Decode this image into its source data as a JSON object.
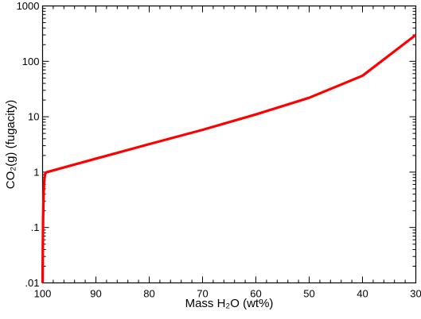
{
  "chart_data": {
    "type": "line",
    "xlabel": "Mass H₂O (wt%)",
    "ylabel": "CO₂(g) (fugacity)",
    "x_scale": "linear",
    "x_reversed": true,
    "xlim": [
      100,
      30
    ],
    "y_scale": "log",
    "ylim": [
      0.01,
      1000
    ],
    "x_ticks": [
      100,
      90,
      80,
      70,
      60,
      50,
      40,
      30
    ],
    "x_tick_labels": [
      "100",
      "90",
      "80",
      "70",
      "60",
      "50",
      "40",
      "30"
    ],
    "y_ticks": [
      0.01,
      0.1,
      1,
      10,
      100,
      1000
    ],
    "y_tick_labels": [
      ".01",
      ".1",
      "1",
      "10",
      "100",
      "1000"
    ],
    "grid": false,
    "series": [
      {
        "color": "#ff0000",
        "points": [
          [
            100.0,
            0.01
          ],
          [
            99.95,
            0.05
          ],
          [
            99.9,
            0.15
          ],
          [
            99.8,
            0.4
          ],
          [
            99.7,
            0.7
          ],
          [
            99.5,
            0.95
          ],
          [
            99.2,
            1.0
          ],
          [
            90,
            1.75
          ],
          [
            80,
            3.2
          ],
          [
            70,
            5.8
          ],
          [
            60,
            11
          ],
          [
            50,
            22
          ],
          [
            40,
            55
          ],
          [
            30,
            300
          ]
        ]
      }
    ]
  }
}
